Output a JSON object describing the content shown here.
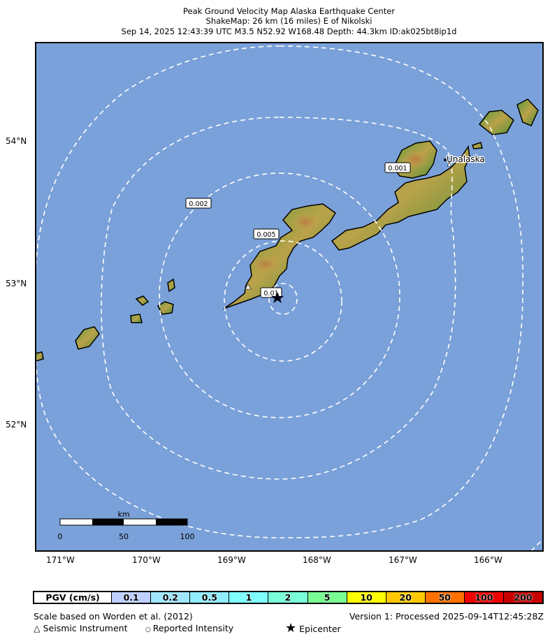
{
  "header": {
    "line1": "Peak Ground Velocity Map Alaska Earthquake Center",
    "line2": "ShakeMap: 26 km (16 miles) E of Nikolski",
    "line3": "Sep 14, 2025 12:43:39 UTC M3.5 N52.92 W168.48 Depth: 44.3km ID:ak025bt8ip1d"
  },
  "map": {
    "ocean_color": "#7aa1d9",
    "lat_ticks": [
      "54°N",
      "53°N",
      "52°N"
    ],
    "lon_ticks": [
      "171°W",
      "170°W",
      "169°W",
      "168°W",
      "167°W",
      "166°W"
    ],
    "contour_labels": [
      "0.001",
      "0.002",
      "0.005",
      "0.01"
    ],
    "place_label": "Unalaska",
    "scale_bar": {
      "unit": "km",
      "ticks": [
        "0",
        "50",
        "100"
      ]
    },
    "epicenter_icon": "star-icon",
    "station_icon": "triangle-icon"
  },
  "legend": {
    "title": "PGV (cm/s)",
    "bins": [
      {
        "label": "0.1",
        "color": "#bfcfff"
      },
      {
        "label": "0.2",
        "color": "#a0e6ff"
      },
      {
        "label": "0.5",
        "color": "#90ecff"
      },
      {
        "label": "1",
        "color": "#80ffff"
      },
      {
        "label": "2",
        "color": "#7affd8"
      },
      {
        "label": "5",
        "color": "#7aff93"
      },
      {
        "label": "10",
        "color": "#ffff00"
      },
      {
        "label": "20",
        "color": "#ffc800"
      },
      {
        "label": "50",
        "color": "#ff7000"
      },
      {
        "label": "100",
        "color": "#f00000"
      },
      {
        "label": "200",
        "color": "#c80000"
      }
    ]
  },
  "footer": {
    "scale_note": "Scale based on Worden et al. (2012)",
    "version": "Version 1: Processed 2025-09-14T12:45:28Z",
    "seismic_instrument": "Seismic Instrument",
    "reported_intensity": "Reported Intensity",
    "epicenter": "Epicenter"
  }
}
